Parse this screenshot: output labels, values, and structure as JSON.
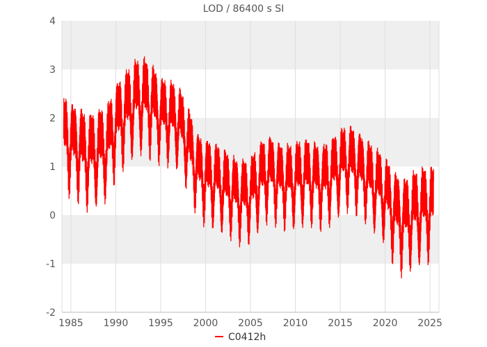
{
  "chart_data": {
    "type": "line",
    "title": "LOD / 86400 s SI",
    "xlabel": "",
    "ylabel": "",
    "xlim": [
      1984.0,
      2026.0
    ],
    "ylim": [
      -2,
      4
    ],
    "y_ticks": [
      -2,
      -1,
      0,
      1,
      2,
      3,
      4
    ],
    "x_ticks": [
      1985,
      1990,
      1995,
      2000,
      2005,
      2010,
      2015,
      2020,
      2025
    ],
    "y_tick_labels": [
      "-2",
      "-1",
      "0",
      "1",
      "2",
      "3",
      "4"
    ],
    "x_tick_labels": [
      "1985",
      "1990",
      "1995",
      "2000",
      "2005",
      "2010",
      "2015",
      "2020",
      "2025"
    ],
    "grid": true,
    "legend_position": "bottom-center",
    "colors": {
      "series": "#ff0000",
      "band": "#efefef",
      "gridline": "#dddddd",
      "text": "#555555"
    },
    "series": [
      {
        "name": "C0412h",
        "x": [
          1984.2,
          1985,
          1986,
          1987,
          1988,
          1989,
          1990,
          1991,
          1992,
          1993,
          1994,
          1995,
          1996,
          1997,
          1998,
          1999,
          2000,
          2001,
          2002,
          2003,
          2004,
          2005,
          2006,
          2007,
          2008,
          2009,
          2010,
          2011,
          2012,
          2013,
          2014,
          2015,
          2016,
          2017,
          2018,
          2019,
          2020,
          2021,
          2022,
          2023,
          2024,
          2025.4
        ],
        "y": [
          1.6,
          1.5,
          1.4,
          1.2,
          1.3,
          1.4,
          1.9,
          2.1,
          2.3,
          2.4,
          2.3,
          2.1,
          2.0,
          1.9,
          1.5,
          1.0,
          0.8,
          0.7,
          0.6,
          0.5,
          0.4,
          0.4,
          0.7,
          0.9,
          0.8,
          0.7,
          0.7,
          0.8,
          0.8,
          0.7,
          0.8,
          1.0,
          1.1,
          1.0,
          0.8,
          0.6,
          0.4,
          0.1,
          -0.1,
          0.0,
          0.1,
          0.2
        ],
        "amplitude": [
          0.9,
          0.9,
          0.9,
          0.9,
          0.9,
          0.9,
          0.9,
          0.9,
          0.9,
          0.9,
          0.9,
          0.8,
          0.8,
          0.8,
          0.8,
          0.8,
          0.8,
          0.8,
          0.8,
          0.8,
          0.8,
          0.8,
          0.8,
          0.8,
          0.8,
          0.8,
          0.8,
          0.8,
          0.8,
          0.8,
          0.8,
          0.8,
          0.8,
          0.8,
          0.8,
          0.8,
          0.8,
          0.9,
          0.9,
          0.9,
          0.9,
          0.9
        ]
      }
    ]
  }
}
